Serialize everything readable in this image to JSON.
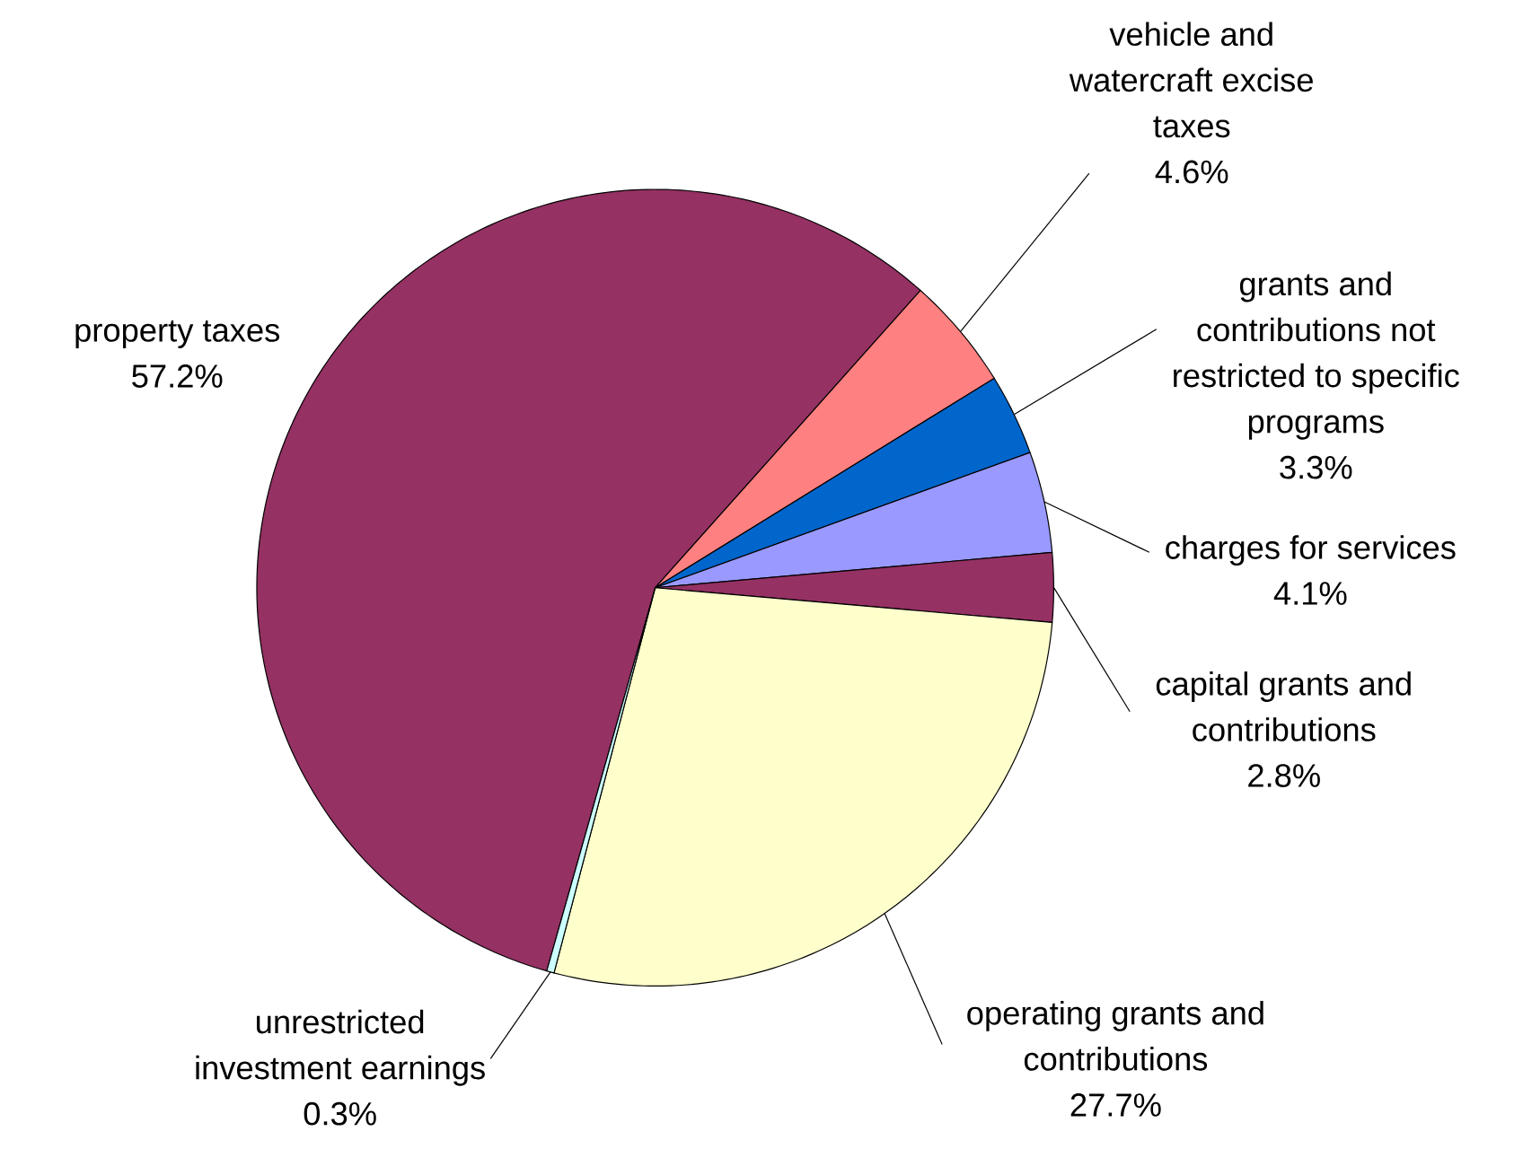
{
  "chart_data": {
    "type": "pie",
    "categories": [
      "property taxes",
      "vehicle and watercraft excise taxes",
      "grants and contributions not restricted to specific programs",
      "charges for services",
      "capital grants and contributions",
      "operating grants and contributions",
      "unrestricted investment earnings"
    ],
    "values": [
      57.2,
      4.6,
      3.3,
      4.1,
      2.8,
      27.7,
      0.3
    ],
    "value_labels": [
      "57.2%",
      "4.6%",
      "3.3%",
      "4.1%",
      "2.8%",
      "27.7%",
      "0.3%"
    ],
    "colors": [
      "#953163",
      "#ff8080",
      "#0066cc",
      "#9999ff",
      "#953163",
      "#ffffcc",
      "#ccffff"
    ]
  }
}
